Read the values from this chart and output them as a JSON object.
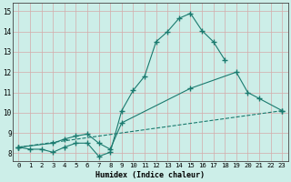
{
  "xlabel": "Humidex (Indice chaleur)",
  "bg_color": "#cceee8",
  "line_color": "#1a7a6e",
  "grid_color": "#d4aaaa",
  "xlim": [
    -0.5,
    23.5
  ],
  "ylim": [
    7.6,
    15.4
  ],
  "xticks": [
    0,
    1,
    2,
    3,
    4,
    5,
    6,
    7,
    8,
    9,
    10,
    11,
    12,
    13,
    14,
    15,
    16,
    17,
    18,
    19,
    20,
    21,
    22,
    23
  ],
  "yticks": [
    8,
    9,
    10,
    11,
    12,
    13,
    14,
    15
  ],
  "line1_x": [
    0,
    1,
    2,
    3,
    4,
    5,
    6,
    7,
    8,
    9,
    10,
    11,
    12,
    13,
    14,
    15,
    16,
    17,
    18
  ],
  "line1_y": [
    8.3,
    8.2,
    8.2,
    8.05,
    8.3,
    8.5,
    8.5,
    7.85,
    8.05,
    10.1,
    11.1,
    11.8,
    13.5,
    14.0,
    14.65,
    14.9,
    14.05,
    13.5,
    12.6
  ],
  "line2_x": [
    0,
    3,
    4,
    5,
    6,
    7,
    8,
    9,
    15,
    19,
    20,
    21,
    23
  ],
  "line2_y": [
    8.3,
    8.5,
    8.7,
    8.85,
    8.95,
    8.5,
    8.2,
    9.5,
    11.2,
    12.0,
    11.0,
    10.7,
    10.1
  ],
  "line3_x": [
    0,
    23
  ],
  "line3_y": [
    8.3,
    10.1
  ]
}
